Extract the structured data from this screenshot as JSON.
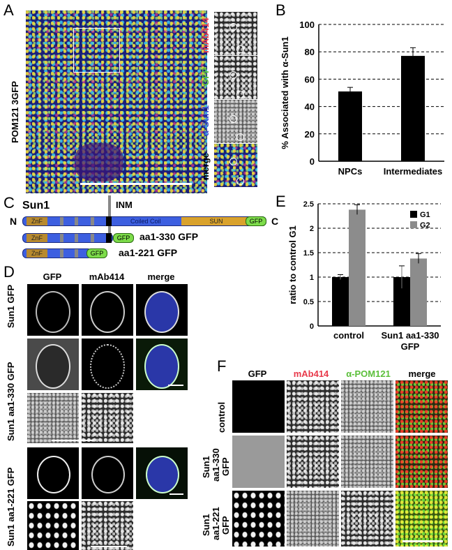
{
  "figure": {
    "panels": [
      "A",
      "B",
      "C",
      "D",
      "E",
      "F"
    ]
  },
  "panelA": {
    "ylabel": "POM121 3GFP",
    "insets": [
      {
        "label": "mAb414",
        "color": "#e8394a"
      },
      {
        "label": "GFP",
        "color": "#5bbf3a"
      },
      {
        "label": "α-Sun1",
        "color": "#3a4fd0"
      },
      {
        "label": "merge",
        "color": "#000000"
      }
    ]
  },
  "panelC": {
    "title": "Sun1",
    "inm_label": "INM",
    "n_label": "N",
    "c_label": "C",
    "constructs": [
      {
        "label": "",
        "znf": "ZnF",
        "coiled": "Coiled Coil",
        "sun": "SUN",
        "gfp": "GFP"
      },
      {
        "label": "aa1-330 GFP",
        "znf": "ZnF",
        "gfp": "GFP"
      },
      {
        "label": "aa1-221 GFP",
        "znf": "ZnF",
        "gfp": "GFP"
      }
    ],
    "colors": {
      "blue": "#3d5fe0",
      "znf": "#b88a2e",
      "sun": "#d9a22c",
      "gfp": "#7ddc4a",
      "tm": "#000000",
      "inm": "#888888"
    }
  },
  "panelD": {
    "headers": [
      "GFP",
      "mAb414",
      "merge"
    ],
    "rows": [
      "Sun1 GFP",
      "Sun1 aa1-330 GFP",
      "Sun1 aa1-221 GFP"
    ]
  },
  "panelF": {
    "headers": [
      {
        "label": "GFP",
        "color": "#000000"
      },
      {
        "label": "mAb414",
        "color": "#e8394a"
      },
      {
        "label": "α-POM121",
        "color": "#5bbf3a"
      },
      {
        "label": "merge",
        "color": "#000000"
      }
    ],
    "rows": [
      [
        "control"
      ],
      [
        "Sun1",
        "aa1-330",
        "GFP"
      ],
      [
        "Sun1",
        "aa1-221",
        "GFP"
      ]
    ]
  },
  "chart_data": [
    {
      "type": "bar",
      "panel": "B",
      "categories": [
        "NPCs",
        "Intermediates"
      ],
      "values": [
        51,
        77
      ],
      "errors": [
        3,
        6
      ],
      "ylabel": "% Associated with α-Sun1",
      "ylim": [
        0,
        100
      ],
      "yticks": [
        0,
        20,
        40,
        60,
        80,
        100
      ],
      "grid": "dashed",
      "bar_color": "#000000"
    },
    {
      "type": "bar",
      "panel": "E",
      "categories": [
        "control",
        "Sun1 aa1-330 GFP"
      ],
      "series": [
        {
          "name": "G1",
          "values": [
            1.0,
            1.0
          ],
          "errors": [
            0.05,
            0.23
          ],
          "color": "#000000"
        },
        {
          "name": "G2",
          "values": [
            2.38,
            1.38
          ],
          "errors": [
            0.1,
            0.1
          ],
          "color": "#8c8c8c"
        }
      ],
      "ylabel": "ratio to control G1",
      "ylim": [
        0,
        2.5
      ],
      "yticks": [
        "0",
        "0.5",
        "1",
        "1.5",
        "2",
        "2.5"
      ],
      "grid": "dashed",
      "legend": "top-right"
    }
  ]
}
